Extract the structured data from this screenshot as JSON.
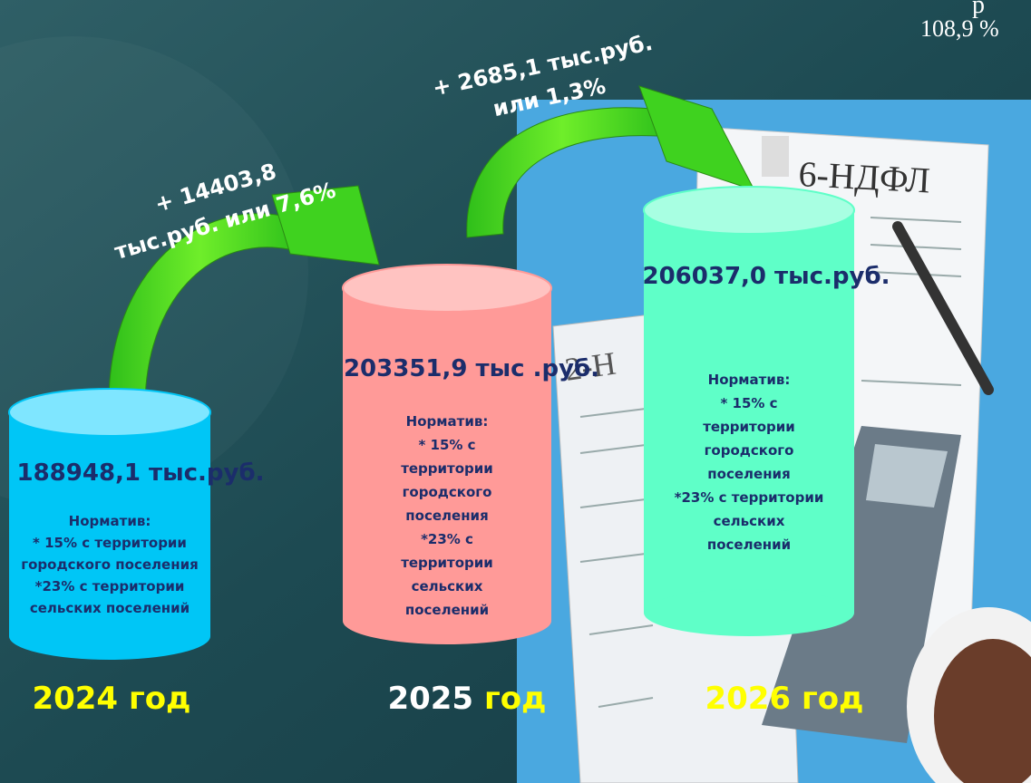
{
  "corner_text": {
    "top": "р",
    "percent": "108,9 %"
  },
  "document_labels": {
    "form_6": "6-НДФЛ",
    "form_2": "2-Н"
  },
  "arrows": [
    {
      "lines": [
        "+ 14403,8",
        "тыс.руб. или 7,6%"
      ]
    },
    {
      "lines": [
        "+ 2685,1 тыс.руб.",
        "или 1,3%"
      ]
    }
  ],
  "cylinders": [
    {
      "value": "188948,1 тыс.руб.",
      "note": [
        "Норматив:",
        "* 15% с территории",
        "городского поселения",
        "*23% с территории",
        "сельских поселений"
      ],
      "year": "2024",
      "word": "год"
    },
    {
      "value": "203351,9 тыс .руб.",
      "note": [
        "Норматив:",
        "* 15% с",
        "территории",
        "городского",
        "поселения",
        "*23% с",
        "территории",
        "сельских",
        "поселений"
      ],
      "year": "2025",
      "word": "год"
    },
    {
      "value": "206037,0 тыс.руб.",
      "note": [
        "Норматив:",
        "* 15% с",
        "территории",
        "городского",
        "поселения",
        "*23% с территории",
        "сельских",
        "поселений"
      ],
      "year": "2026",
      "word": "год"
    }
  ]
}
